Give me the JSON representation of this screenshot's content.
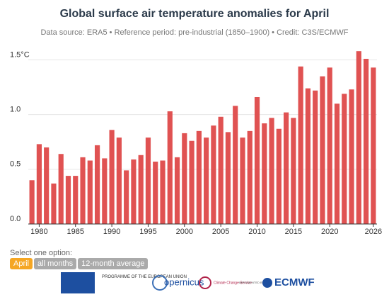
{
  "chart_data": {
    "type": "bar",
    "title": "Global surface air temperature anomalies for April",
    "subtitle": "Data source: ERA5 • Reference period: pre-industrial (1850–1900) • Credit: C3S/ECMWF",
    "x": [
      1979,
      1980,
      1981,
      1982,
      1983,
      1984,
      1985,
      1986,
      1987,
      1988,
      1989,
      1990,
      1991,
      1992,
      1993,
      1994,
      1995,
      1996,
      1997,
      1998,
      1999,
      2000,
      2001,
      2002,
      2003,
      2004,
      2005,
      2006,
      2007,
      2008,
      2009,
      2010,
      2011,
      2012,
      2013,
      2014,
      2015,
      2016,
      2017,
      2018,
      2019,
      2020,
      2021,
      2022,
      2023,
      2024,
      2025,
      2026
    ],
    "values": [
      0.4,
      0.73,
      0.7,
      0.37,
      0.64,
      0.44,
      0.44,
      0.61,
      0.58,
      0.72,
      0.6,
      0.86,
      0.79,
      0.49,
      0.59,
      0.63,
      0.79,
      0.57,
      0.58,
      1.03,
      0.61,
      0.83,
      0.76,
      0.85,
      0.79,
      0.9,
      0.98,
      0.84,
      1.08,
      0.79,
      0.85,
      1.16,
      0.92,
      0.97,
      0.87,
      1.02,
      0.97,
      1.44,
      1.24,
      1.22,
      1.35,
      1.43,
      1.1,
      1.19,
      1.23,
      1.58,
      1.51,
      1.43
    ],
    "color": "#e05252",
    "xlim": [
      1978.5,
      2026.5
    ],
    "ylim": [
      0,
      1.62
    ],
    "xticks": [
      1980,
      1985,
      1990,
      1995,
      2000,
      2005,
      2010,
      2015,
      2020,
      2026
    ],
    "yticks": [
      {
        "value": 0,
        "label": "0.0"
      },
      {
        "value": 0.5,
        "label": "0.5"
      },
      {
        "value": 1,
        "label": "1.0"
      },
      {
        "value": 1.5,
        "label": "1.5°C"
      }
    ],
    "grid": true
  },
  "controls": {
    "prompt": "Select one option:",
    "options": [
      "April",
      "all months",
      "12-month average"
    ]
  },
  "footer": {
    "eu": "PROGRAMME OF THE EUROPEAN UNION",
    "copernicus": "opernicus",
    "c3s": "Climate Change Service",
    "implemented": "IMPLEMENTED BY",
    "ecmwf": "ECMWF"
  }
}
